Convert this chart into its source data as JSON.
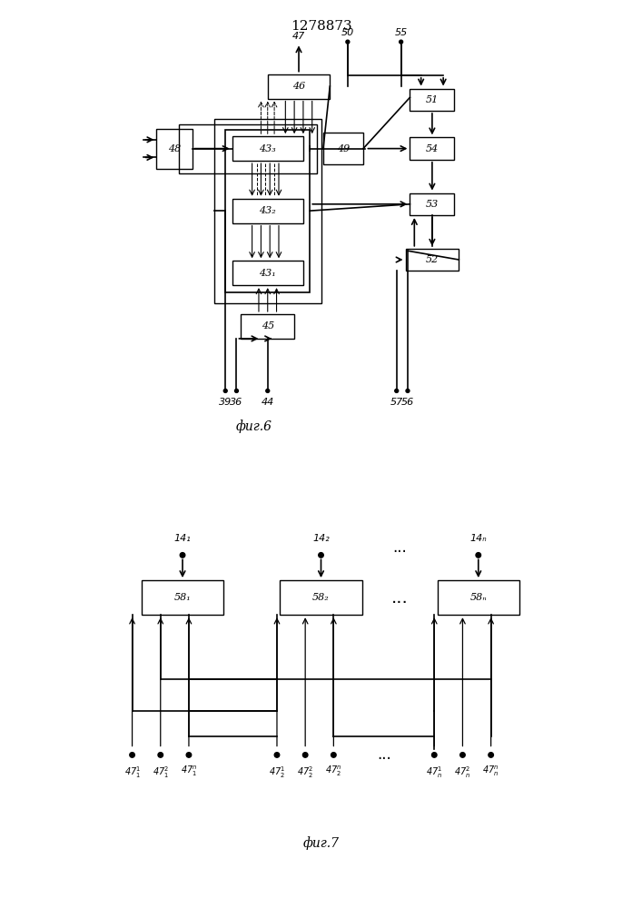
{
  "title": "1278873",
  "fig6_label": "фиг.6",
  "fig7_label": "фиг.7",
  "bg_color": "#ffffff",
  "line_color": "#000000",
  "box_color": "#ffffff",
  "box_edge": "#000000"
}
